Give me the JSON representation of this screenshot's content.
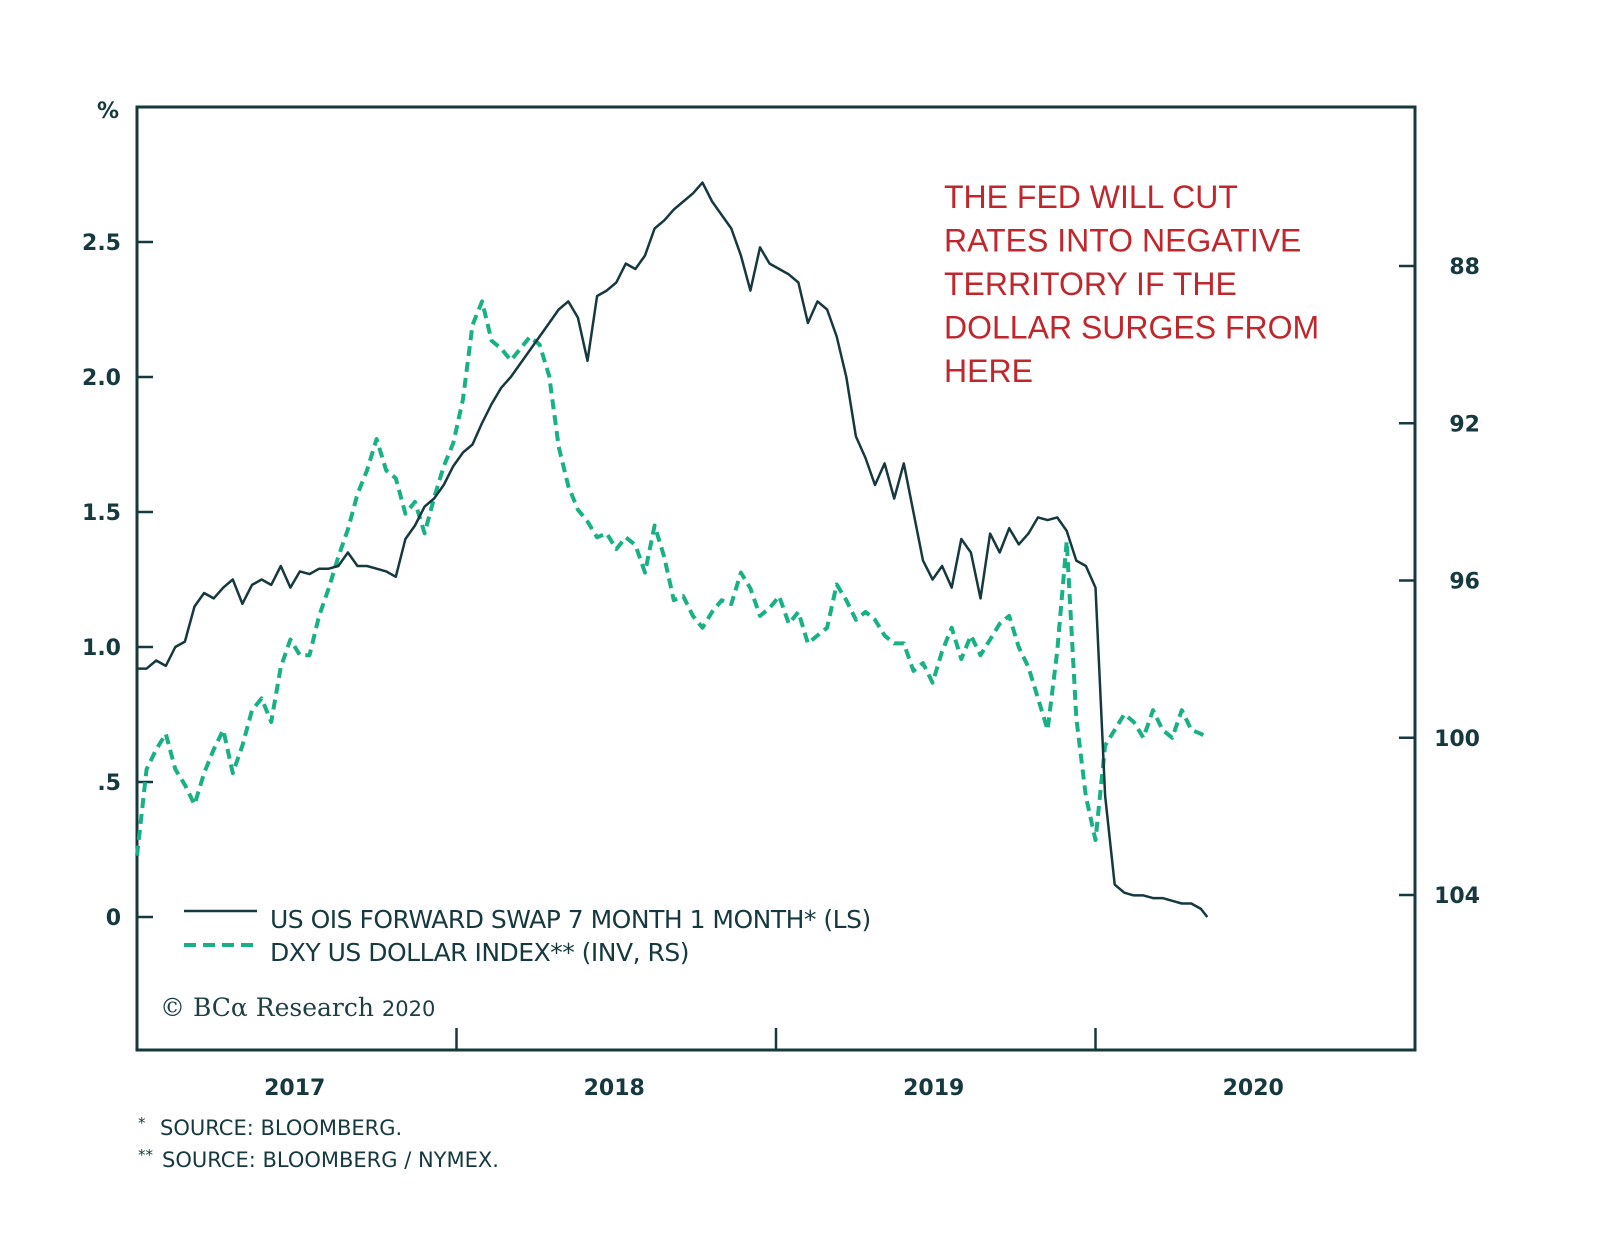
{
  "chart_data": {
    "type": "line",
    "title": "",
    "annotation": [
      "THE FED WILL CUT",
      "RATES INTO NEGATIVE",
      "TERRITORY IF THE",
      "DOLLAR SURGES FROM",
      "HERE"
    ],
    "xlabel": "",
    "x_tick_labels": [
      "2017",
      "2018",
      "2019",
      "2020"
    ],
    "xlim": [
      2017.0,
      2021.0
    ],
    "left_axis": {
      "unit_label": "%",
      "ticks": [
        0,
        0.5,
        1.0,
        1.5,
        2.0,
        2.5
      ],
      "tick_labels": [
        "0",
        ".5",
        "1.0",
        "1.5",
        "2.0",
        "2.5"
      ],
      "ylim": [
        -0.5,
        3.0
      ]
    },
    "right_axis": {
      "inverted": true,
      "ticks": [
        88,
        92,
        96,
        100,
        104
      ],
      "tick_labels": [
        "88",
        "92",
        "96",
        "100",
        "104"
      ],
      "ylim": [
        84.6,
        108.6
      ]
    },
    "grid": false,
    "legend": {
      "position": "bottom-left",
      "entries": [
        {
          "label": "US OIS FORWARD SWAP 7 MONTH 1 MONTH* (LS)",
          "style": "solid",
          "color": "#16393f"
        },
        {
          "label": "DXY US DOLLAR INDEX** (INV, RS)",
          "style": "dashed",
          "color": "#17b185"
        }
      ]
    },
    "series": [
      {
        "name": "US OIS FORWARD SWAP 7 MONTH 1 MONTH* (LS)",
        "axis": "left",
        "color": "#16393f",
        "x": [
          2017.0,
          2017.03,
          2017.06,
          2017.09,
          2017.12,
          2017.15,
          2017.18,
          2017.21,
          2017.24,
          2017.27,
          2017.3,
          2017.33,
          2017.36,
          2017.39,
          2017.42,
          2017.45,
          2017.48,
          2017.51,
          2017.54,
          2017.57,
          2017.6,
          2017.63,
          2017.66,
          2017.69,
          2017.72,
          2017.75,
          2017.78,
          2017.81,
          2017.84,
          2017.87,
          2017.9,
          2017.93,
          2017.96,
          2017.99,
          2018.02,
          2018.05,
          2018.08,
          2018.11,
          2018.14,
          2018.17,
          2018.2,
          2018.23,
          2018.26,
          2018.29,
          2018.32,
          2018.35,
          2018.38,
          2018.41,
          2018.44,
          2018.47,
          2018.5,
          2018.53,
          2018.56,
          2018.59,
          2018.62,
          2018.65,
          2018.68,
          2018.71,
          2018.74,
          2018.77,
          2018.8,
          2018.83,
          2018.86,
          2018.89,
          2018.92,
          2018.95,
          2018.98,
          2019.01,
          2019.04,
          2019.07,
          2019.1,
          2019.13,
          2019.16,
          2019.19,
          2019.22,
          2019.25,
          2019.28,
          2019.31,
          2019.34,
          2019.37,
          2019.4,
          2019.43,
          2019.46,
          2019.49,
          2019.52,
          2019.55,
          2019.58,
          2019.61,
          2019.64,
          2019.67,
          2019.7,
          2019.73,
          2019.76,
          2019.79,
          2019.82,
          2019.85,
          2019.88,
          2019.91,
          2019.94,
          2019.97,
          2020.0,
          2020.03,
          2020.06,
          2020.09,
          2020.12,
          2020.15,
          2020.18,
          2020.21,
          2020.24,
          2020.27,
          2020.3,
          2020.33,
          2020.35
        ],
        "values": [
          0.92,
          0.92,
          0.95,
          0.93,
          1.0,
          1.02,
          1.15,
          1.2,
          1.18,
          1.22,
          1.25,
          1.16,
          1.23,
          1.25,
          1.23,
          1.3,
          1.22,
          1.28,
          1.27,
          1.29,
          1.29,
          1.3,
          1.35,
          1.3,
          1.3,
          1.29,
          1.28,
          1.26,
          1.4,
          1.45,
          1.52,
          1.55,
          1.6,
          1.67,
          1.72,
          1.75,
          1.83,
          1.9,
          1.96,
          2.0,
          2.05,
          2.1,
          2.15,
          2.2,
          2.25,
          2.28,
          2.22,
          2.06,
          2.3,
          2.32,
          2.35,
          2.42,
          2.4,
          2.45,
          2.55,
          2.58,
          2.62,
          2.65,
          2.68,
          2.72,
          2.65,
          2.6,
          2.55,
          2.45,
          2.32,
          2.48,
          2.42,
          2.4,
          2.38,
          2.35,
          2.2,
          2.28,
          2.25,
          2.15,
          2.0,
          1.78,
          1.7,
          1.6,
          1.68,
          1.55,
          1.68,
          1.5,
          1.32,
          1.25,
          1.3,
          1.22,
          1.4,
          1.35,
          1.18,
          1.42,
          1.35,
          1.44,
          1.38,
          1.42,
          1.48,
          1.47,
          1.48,
          1.43,
          1.32,
          1.3,
          1.22,
          0.45,
          0.12,
          0.09,
          0.08,
          0.08,
          0.07,
          0.07,
          0.06,
          0.05,
          0.05,
          0.03,
          0.0
        ]
      },
      {
        "name": "DXY US DOLLAR INDEX** (INV, RS)",
        "axis": "right",
        "color": "#17b185",
        "x": [
          2017.0,
          2017.03,
          2017.06,
          2017.09,
          2017.12,
          2017.15,
          2017.18,
          2017.21,
          2017.24,
          2017.27,
          2017.3,
          2017.33,
          2017.36,
          2017.39,
          2017.42,
          2017.45,
          2017.48,
          2017.51,
          2017.54,
          2017.57,
          2017.6,
          2017.63,
          2017.66,
          2017.69,
          2017.72,
          2017.75,
          2017.78,
          2017.81,
          2017.84,
          2017.87,
          2017.9,
          2017.93,
          2017.96,
          2017.99,
          2018.02,
          2018.05,
          2018.08,
          2018.11,
          2018.14,
          2018.17,
          2018.2,
          2018.23,
          2018.26,
          2018.29,
          2018.32,
          2018.35,
          2018.38,
          2018.41,
          2018.44,
          2018.47,
          2018.5,
          2018.53,
          2018.56,
          2018.59,
          2018.62,
          2018.65,
          2018.68,
          2018.71,
          2018.74,
          2018.77,
          2018.8,
          2018.83,
          2018.86,
          2018.89,
          2018.92,
          2018.95,
          2018.98,
          2019.01,
          2019.04,
          2019.07,
          2019.1,
          2019.13,
          2019.16,
          2019.19,
          2019.22,
          2019.25,
          2019.28,
          2019.31,
          2019.34,
          2019.37,
          2019.4,
          2019.43,
          2019.46,
          2019.49,
          2019.52,
          2019.55,
          2019.58,
          2019.61,
          2019.64,
          2019.67,
          2019.7,
          2019.73,
          2019.76,
          2019.79,
          2019.82,
          2019.85,
          2019.88,
          2019.91,
          2019.94,
          2019.97,
          2020.0,
          2020.03,
          2020.06,
          2020.09,
          2020.12,
          2020.15,
          2020.18,
          2020.21,
          2020.24,
          2020.27,
          2020.3,
          2020.33,
          2020.35
        ],
        "values": [
          103.0,
          100.8,
          100.3,
          99.9,
          100.8,
          101.2,
          101.7,
          100.9,
          100.3,
          99.8,
          100.9,
          100.2,
          99.3,
          99.0,
          99.6,
          98.2,
          97.5,
          97.9,
          97.9,
          96.9,
          96.2,
          95.4,
          94.7,
          93.8,
          93.2,
          92.4,
          93.2,
          93.4,
          94.3,
          94.0,
          94.8,
          93.9,
          93.1,
          92.5,
          91.4,
          89.5,
          88.9,
          89.9,
          90.1,
          90.4,
          90.1,
          89.8,
          90.0,
          90.8,
          92.6,
          93.6,
          94.2,
          94.5,
          94.9,
          94.8,
          95.2,
          94.9,
          95.1,
          95.8,
          94.6,
          95.4,
          96.5,
          96.4,
          96.9,
          97.2,
          96.8,
          96.5,
          96.6,
          95.8,
          96.2,
          96.9,
          96.7,
          96.4,
          97.1,
          96.8,
          97.6,
          97.4,
          97.2,
          96.1,
          96.5,
          97.0,
          96.8,
          97.0,
          97.4,
          97.6,
          97.6,
          98.3,
          98.1,
          98.6,
          97.8,
          97.2,
          98.0,
          97.4,
          97.9,
          97.5,
          97.1,
          96.9,
          97.7,
          98.2,
          99.0,
          99.8,
          97.8,
          95.0,
          99.5,
          101.5,
          102.6,
          100.2,
          99.8,
          99.4,
          99.6,
          100.0,
          99.3,
          99.8,
          100.0,
          99.3,
          99.8,
          99.9,
          100.0
        ]
      }
    ]
  },
  "annotation_color": "#c0272d",
  "copyright": {
    "symbol": "©",
    "brand": "BCα",
    "text": "Research",
    "year": "2020"
  },
  "footnotes": [
    {
      "marker": "*",
      "text": "SOURCE: BLOOMBERG."
    },
    {
      "marker": "**",
      "text": "SOURCE: BLOOMBERG / NYMEX."
    }
  ]
}
